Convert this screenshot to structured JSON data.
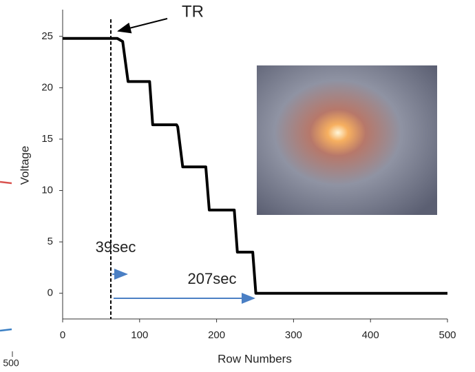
{
  "chart_data": {
    "type": "line",
    "x_label": "Row Numbers",
    "y_label": "Voltage",
    "x": [
      0,
      71,
      78,
      85,
      113,
      117,
      148,
      149.5,
      156,
      186,
      190.5,
      223,
      227,
      247,
      251,
      500
    ],
    "series": [
      {
        "name": "Voltage",
        "color": "#000000",
        "values": [
          24.8,
          24.8,
          24.5,
          20.6,
          20.6,
          16.4,
          16.4,
          16.2,
          12.3,
          12.3,
          8.1,
          8.1,
          4.0,
          4.0,
          0,
          0
        ]
      }
    ],
    "xlim": [
      0,
      500
    ],
    "xticks": [
      0,
      100,
      200,
      300,
      400,
      500
    ],
    "ylim": [
      -2.5,
      27.6
    ],
    "yticks": [
      0,
      5,
      10,
      15,
      20,
      25
    ],
    "annotations": [
      "TR",
      "39sec",
      "207sec"
    ],
    "side_fragment_label": "500"
  }
}
